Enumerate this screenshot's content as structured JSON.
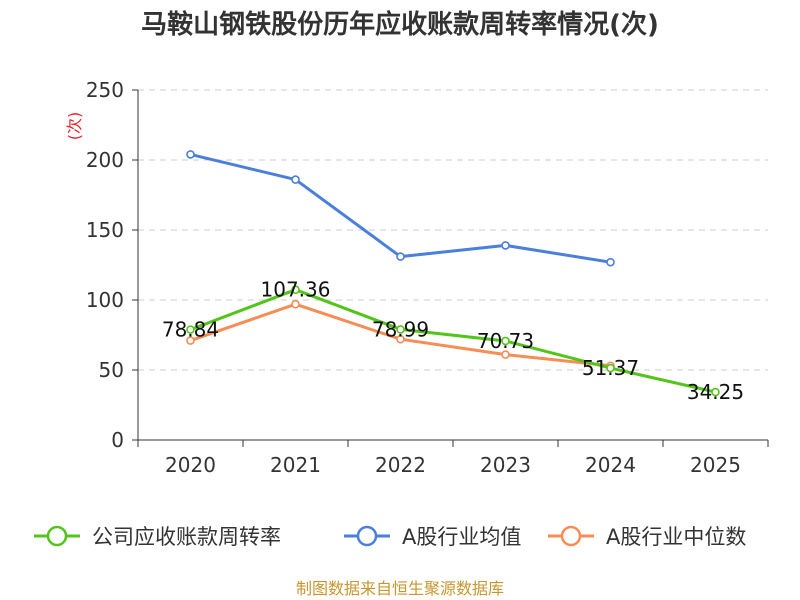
{
  "chart_data": {
    "type": "line",
    "title": "马鞍山钢铁股份历年应收账款周转率情况(次)",
    "ylabel": "(次)",
    "xlabel": "",
    "ylim": [
      0,
      250
    ],
    "yticks": [
      0,
      50,
      100,
      150,
      200,
      250
    ],
    "grid": true,
    "legend_position": "bottom",
    "categories": [
      "2020",
      "2021",
      "2022",
      "2023",
      "2024",
      "2025"
    ],
    "series": [
      {
        "name": "公司应收账款周转率",
        "color": "#52c41a",
        "values": [
          78.84,
          107.36,
          78.99,
          70.73,
          51.37,
          34.25
        ],
        "labels": [
          "78.84",
          "107.36",
          "78.99",
          "70.73",
          "51.37",
          "34.25"
        ]
      },
      {
        "name": "A股行业均值",
        "color": "#4a7fdc",
        "values": [
          204,
          186,
          131,
          139,
          127,
          null
        ],
        "labels": []
      },
      {
        "name": "A股行业中位数",
        "color": "#f68d55",
        "values": [
          71,
          97,
          72,
          61,
          53,
          null
        ],
        "labels": []
      }
    ],
    "source": "制图数据来自恒生聚源数据库"
  }
}
